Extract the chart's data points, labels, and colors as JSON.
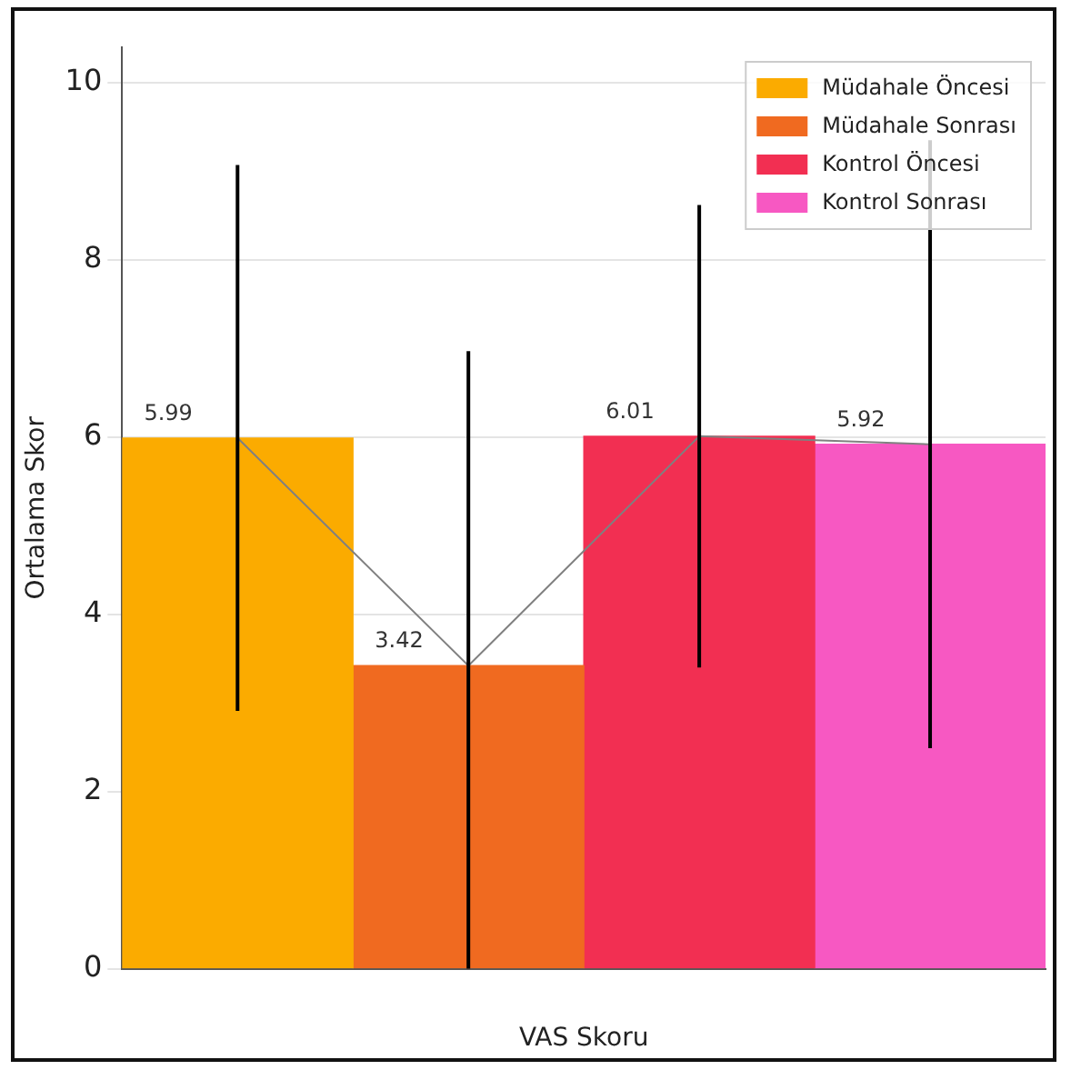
{
  "chart_data": {
    "type": "bar",
    "xlabel": "VAS Skoru",
    "ylabel": "Ortalama Skor",
    "categories": [
      null,
      null,
      null,
      null
    ],
    "stacked": true,
    "series": [
      {
        "name": "Müdahale Öncesi",
        "color": "#fbab00",
        "values": [
          5.99,
          null,
          null,
          null
        ],
        "errors": [
          3.08,
          null,
          null,
          null
        ],
        "value_labels": [
          "5.99",
          null,
          null,
          null
        ]
      },
      {
        "name": "Müdahale Sonrası",
        "color": "#f06a20",
        "values": [
          null,
          3.42,
          null,
          null
        ],
        "errors": [
          null,
          [
            0,
            6.97
          ],
          null,
          null
        ],
        "value_labels": [
          null,
          "3.42",
          null,
          null
        ]
      },
      {
        "name": "Kontrol Öncesi",
        "color": "#f22f52",
        "values": [
          null,
          null,
          6.01,
          null
        ],
        "errors": [
          null,
          null,
          2.61,
          null
        ],
        "value_labels": [
          null,
          null,
          "6.01",
          null
        ]
      },
      {
        "name": "Kontrol Sonrası",
        "color": "#f758c2",
        "values": [
          null,
          null,
          null,
          5.92
        ],
        "errors": [
          null,
          null,
          null,
          3.43
        ],
        "value_labels": [
          null,
          null,
          null,
          "5.92"
        ]
      },
      {
        "type": "line",
        "color": "#808080",
        "values": [
          5.99,
          3.42,
          6.01,
          5.92
        ]
      }
    ],
    "ylim": [
      0,
      10.4
    ],
    "yticks": [
      0,
      2,
      4,
      6,
      8,
      10
    ],
    "grid": "y",
    "legend": "top right",
    "marker": "none"
  }
}
